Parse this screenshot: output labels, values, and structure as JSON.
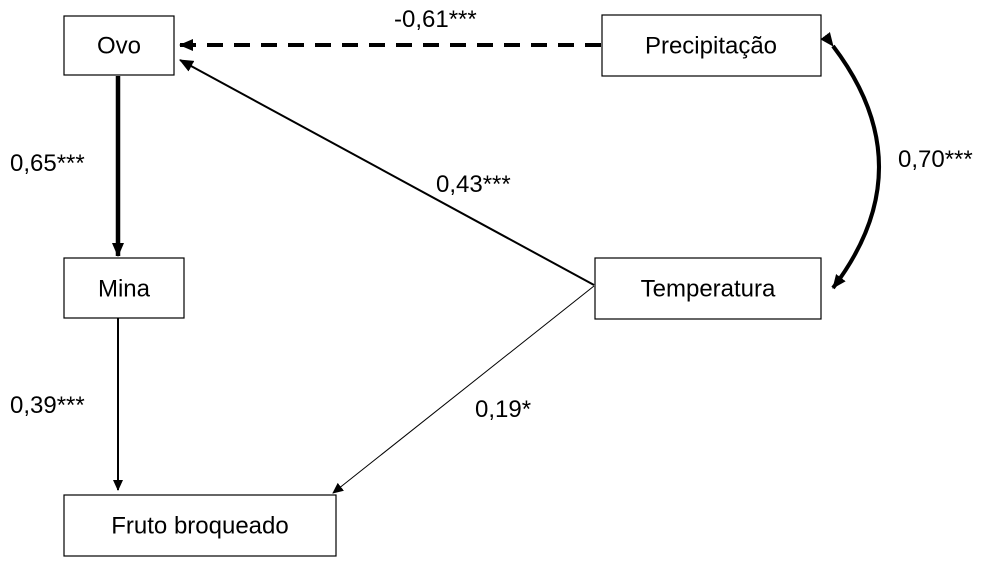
{
  "nodes": {
    "ovo": "Ovo",
    "precipitacao": "Precipitação",
    "mina": "Mina",
    "temperatura": "Temperatura",
    "fruto": "Fruto broqueado"
  },
  "edges": {
    "precipitacao_ovo": "-0,61***",
    "ovo_mina": "0,65***",
    "temperatura_ovo": "0,43***",
    "precipitacao_temperatura": "0,70***",
    "mina_fruto": "0,39***",
    "temperatura_fruto": "0,19*"
  }
}
